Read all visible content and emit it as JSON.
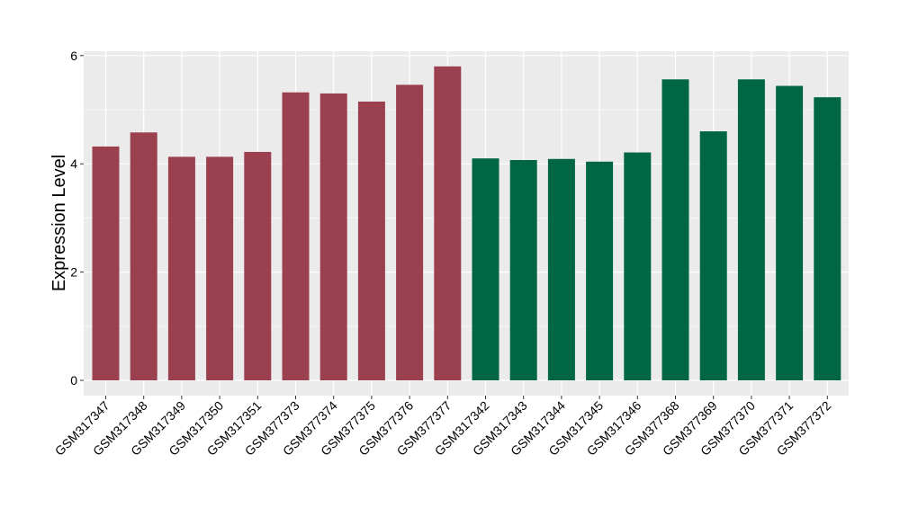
{
  "chart_data": {
    "type": "bar",
    "title": "",
    "xlabel": "",
    "ylabel": "Expression Level",
    "ylim": [
      0,
      6.2
    ],
    "yticks": [
      0,
      2,
      4,
      6
    ],
    "grid": true,
    "legend": "none",
    "panel_background": "#ebebeb",
    "grid_color": "#ffffff",
    "categories": [
      "GSM317347",
      "GSM317348",
      "GSM317349",
      "GSM317350",
      "GSM317351",
      "GSM377373",
      "GSM377374",
      "GSM377375",
      "GSM377376",
      "GSM377377",
      "GSM317342",
      "GSM317343",
      "GSM317344",
      "GSM317345",
      "GSM317346",
      "GSM377368",
      "GSM377369",
      "GSM377370",
      "GSM377371",
      "GSM377372"
    ],
    "values": [
      4.32,
      4.58,
      4.13,
      4.13,
      4.22,
      5.32,
      5.3,
      5.15,
      5.46,
      5.8,
      4.1,
      4.07,
      4.09,
      4.04,
      4.21,
      5.56,
      4.6,
      5.56,
      5.44,
      5.23
    ],
    "bar_colors": [
      "#9b404f",
      "#9b404f",
      "#9b404f",
      "#9b404f",
      "#9b404f",
      "#9b404f",
      "#9b404f",
      "#9b404f",
      "#9b404f",
      "#9b404f",
      "#006643",
      "#006643",
      "#006643",
      "#006643",
      "#006643",
      "#006643",
      "#006643",
      "#006643",
      "#006643",
      "#006643"
    ]
  }
}
